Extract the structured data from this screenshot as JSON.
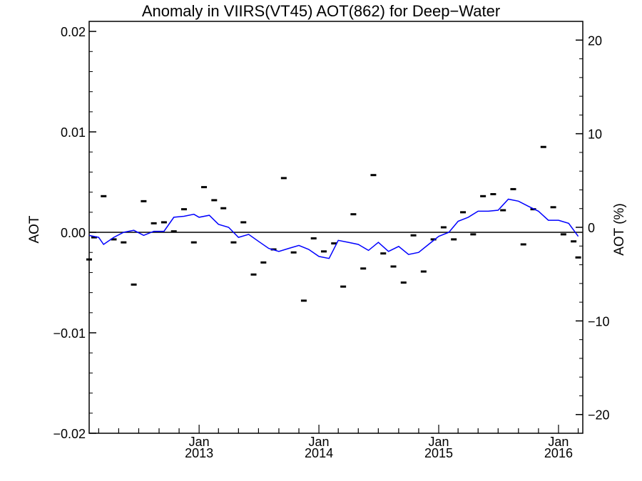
{
  "chart_data": {
    "type": "line",
    "title": "Anomaly in VIIRS(VT45) AOT(862) for Deep−Water",
    "ylabel": "AOT",
    "y2label": "AOT (%)",
    "ylim": [
      -0.02,
      0.021
    ],
    "y2lim": [
      -22,
      22
    ],
    "yticks": [
      {
        "value": 0.02,
        "label": "0.02"
      },
      {
        "value": 0.01,
        "label": "0.01"
      },
      {
        "value": 0.0,
        "label": "0.00"
      },
      {
        "value": -0.01,
        "label": "−0.01"
      },
      {
        "value": -0.02,
        "label": "−0.02"
      }
    ],
    "y2ticks": [
      {
        "value": 20,
        "label": "20"
      },
      {
        "value": 10,
        "label": "10"
      },
      {
        "value": 0,
        "label": "0"
      },
      {
        "value": -10,
        "label": "−10"
      },
      {
        "value": -20,
        "label": "−20"
      }
    ],
    "xlim": [
      "2012-02-01",
      "2016-03-15"
    ],
    "xticks": [
      {
        "date": "2013-01-01",
        "month": "Jan",
        "year": "2013"
      },
      {
        "date": "2014-01-01",
        "month": "Jan",
        "year": "2014"
      },
      {
        "date": "2015-01-01",
        "month": "Jan",
        "year": "2015"
      },
      {
        "date": "2016-01-01",
        "month": "Jan",
        "year": "2016"
      }
    ],
    "zero_line": true,
    "series": [
      {
        "kind": "points",
        "color": "#000000",
        "points": [
          [
            "2012-02-01",
            -0.0027
          ],
          [
            "2012-02-16",
            -0.0005
          ],
          [
            "2012-03-16",
            0.0036
          ],
          [
            "2012-04-16",
            -0.0007
          ],
          [
            "2012-05-16",
            -0.001
          ],
          [
            "2012-06-16",
            -0.0052
          ],
          [
            "2012-07-16",
            0.0031
          ],
          [
            "2012-08-16",
            0.0009
          ],
          [
            "2012-09-16",
            0.001
          ],
          [
            "2012-10-16",
            0.0001
          ],
          [
            "2012-11-16",
            0.0023
          ],
          [
            "2012-12-16",
            -0.001
          ],
          [
            "2013-01-16",
            0.0045
          ],
          [
            "2013-02-16",
            0.0032
          ],
          [
            "2013-03-16",
            0.0024
          ],
          [
            "2013-04-16",
            -0.001
          ],
          [
            "2013-05-16",
            0.001
          ],
          [
            "2013-06-16",
            -0.0042
          ],
          [
            "2013-07-16",
            -0.003
          ],
          [
            "2013-08-16",
            -0.0017
          ],
          [
            "2013-09-16",
            0.0054
          ],
          [
            "2013-10-16",
            -0.002
          ],
          [
            "2013-11-16",
            -0.0068
          ],
          [
            "2013-12-16",
            -0.0006
          ],
          [
            "2014-01-16",
            -0.0019
          ],
          [
            "2014-02-16",
            -0.0011
          ],
          [
            "2014-03-16",
            -0.0054
          ],
          [
            "2014-04-16",
            0.0018
          ],
          [
            "2014-05-16",
            -0.0036
          ],
          [
            "2014-06-16",
            0.0057
          ],
          [
            "2014-07-16",
            -0.0021
          ],
          [
            "2014-08-16",
            -0.0034
          ],
          [
            "2014-09-16",
            -0.005
          ],
          [
            "2014-10-16",
            -0.0003
          ],
          [
            "2014-11-16",
            -0.0039
          ],
          [
            "2014-12-16",
            -0.0007
          ],
          [
            "2015-01-16",
            0.0005
          ],
          [
            "2015-02-16",
            -0.0007
          ],
          [
            "2015-03-16",
            0.002
          ],
          [
            "2015-04-16",
            -0.0002
          ],
          [
            "2015-05-16",
            0.0036
          ],
          [
            "2015-06-16",
            0.0038
          ],
          [
            "2015-07-16",
            0.0022
          ],
          [
            "2015-08-16",
            0.0043
          ],
          [
            "2015-09-16",
            -0.0012
          ],
          [
            "2015-10-16",
            0.0023
          ],
          [
            "2015-11-16",
            0.0085
          ],
          [
            "2015-12-16",
            0.0025
          ],
          [
            "2016-01-16",
            -0.0002
          ],
          [
            "2016-02-16",
            -0.0009
          ],
          [
            "2016-03-01",
            -0.0025
          ]
        ]
      },
      {
        "kind": "line",
        "color": "#0000ff",
        "points": [
          [
            "2012-02-01",
            -0.0003
          ],
          [
            "2012-03-01",
            -0.0005
          ],
          [
            "2012-03-16",
            -0.0012
          ],
          [
            "2012-04-16",
            -0.0005
          ],
          [
            "2012-05-16",
            0.0
          ],
          [
            "2012-06-16",
            0.0002
          ],
          [
            "2012-07-16",
            -0.0003
          ],
          [
            "2012-08-16",
            0.0001
          ],
          [
            "2012-09-16",
            0.0001
          ],
          [
            "2012-10-16",
            0.0015
          ],
          [
            "2012-11-16",
            0.0016
          ],
          [
            "2012-12-16",
            0.0018
          ],
          [
            "2013-01-01",
            0.0015
          ],
          [
            "2013-02-01",
            0.0017
          ],
          [
            "2013-03-01",
            0.0008
          ],
          [
            "2013-04-01",
            0.0005
          ],
          [
            "2013-05-01",
            -0.0005
          ],
          [
            "2013-06-01",
            -0.0002
          ],
          [
            "2013-07-01",
            -0.0009
          ],
          [
            "2013-08-01",
            -0.0016
          ],
          [
            "2013-09-01",
            -0.0019
          ],
          [
            "2013-10-01",
            -0.0016
          ],
          [
            "2013-11-01",
            -0.0013
          ],
          [
            "2013-12-01",
            -0.0017
          ],
          [
            "2014-01-01",
            -0.0024
          ],
          [
            "2014-02-01",
            -0.0026
          ],
          [
            "2014-03-01",
            -0.0008
          ],
          [
            "2014-04-01",
            -0.001
          ],
          [
            "2014-05-01",
            -0.0012
          ],
          [
            "2014-06-01",
            -0.0018
          ],
          [
            "2014-07-01",
            -0.001
          ],
          [
            "2014-08-01",
            -0.0019
          ],
          [
            "2014-09-01",
            -0.0014
          ],
          [
            "2014-10-01",
            -0.0022
          ],
          [
            "2014-11-01",
            -0.002
          ],
          [
            "2014-12-01",
            -0.0012
          ],
          [
            "2015-01-01",
            -0.0004
          ],
          [
            "2015-02-01",
            0.0
          ],
          [
            "2015-03-01",
            0.0011
          ],
          [
            "2015-04-01",
            0.0015
          ],
          [
            "2015-05-01",
            0.0021
          ],
          [
            "2015-06-01",
            0.0021
          ],
          [
            "2015-07-01",
            0.0022
          ],
          [
            "2015-08-01",
            0.0033
          ],
          [
            "2015-09-01",
            0.0031
          ],
          [
            "2015-10-01",
            0.0026
          ],
          [
            "2015-11-01",
            0.0021
          ],
          [
            "2015-12-01",
            0.0012
          ],
          [
            "2016-01-01",
            0.0012
          ],
          [
            "2016-02-01",
            0.0009
          ],
          [
            "2016-03-01",
            -0.0004
          ]
        ]
      }
    ]
  }
}
